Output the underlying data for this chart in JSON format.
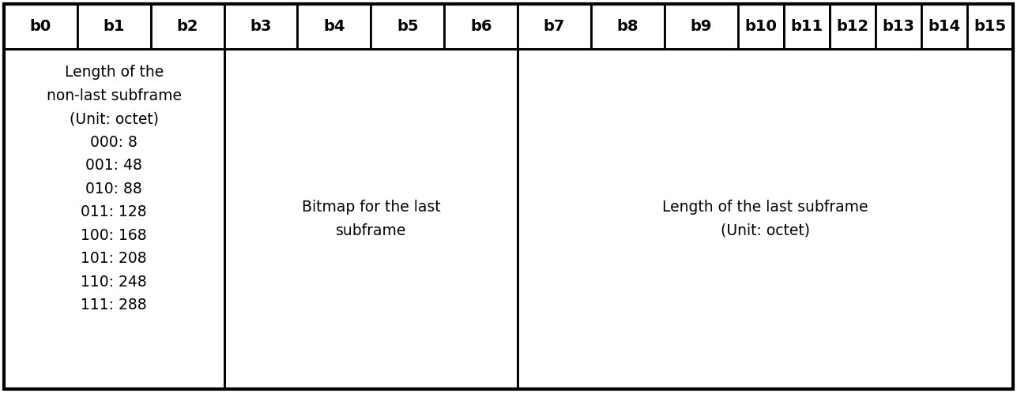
{
  "header_labels": [
    "b0",
    "b1",
    "b2",
    "b3",
    "b4",
    "b5",
    "b6",
    "b7",
    "b8",
    "b9",
    "b10",
    "b11",
    "b12",
    "b13",
    "b14",
    "b15"
  ],
  "group_spans": [
    {
      "start": 0,
      "end": 2,
      "label": "Length of the\nnon-last subframe\n(Unit: octet)\n000: 8\n001: 48\n010: 88\n011: 128\n100: 168\n101: 208\n110: 248\n111: 288",
      "align": "top"
    },
    {
      "start": 3,
      "end": 6,
      "label": "Bitmap for the last\nsubframe",
      "align": "center"
    },
    {
      "start": 7,
      "end": 15,
      "label": "Length of the last subframe\n(Unit: octet)",
      "align": "center"
    }
  ],
  "bg_color": "#ffffff",
  "border_color": "#000000",
  "text_color": "#000000",
  "header_fontsize": 14,
  "content_fontsize": 13.5,
  "lw": 2.0
}
